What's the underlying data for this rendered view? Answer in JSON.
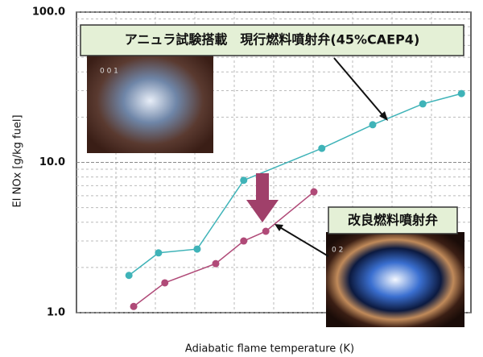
{
  "chart_data": {
    "type": "line",
    "y_label": "EI NOx [g/kg fuel]",
    "x_label": "Adiabatic flame temperature (K)",
    "log_y": true,
    "ylim": [
      1,
      100
    ],
    "yticks": [
      {
        "value": 1,
        "label": "1.0"
      },
      {
        "value": 10,
        "label": "10.0"
      },
      {
        "value": 100,
        "label": "100.0"
      }
    ],
    "xlim": [
      0,
      100
    ],
    "grid": true,
    "series": [
      {
        "name": "アニュラ試験搭載　現行燃料噴射弁(45%CAEP4)",
        "color": "#3fb3b8",
        "x": [
          13.3,
          20.8,
          30.6,
          42.4,
          62.2,
          75.1,
          87.8,
          97.6
        ],
        "values": [
          1.77,
          2.5,
          2.65,
          7.6,
          12.4,
          17.8,
          24.5,
          28.7
        ]
      },
      {
        "name": "改良燃料噴射弁",
        "color": "#b04a78",
        "x": [
          14.5,
          22.4,
          35.3,
          42.4,
          48.0,
          60.2
        ],
        "values": [
          1.1,
          1.58,
          2.12,
          3.0,
          3.48,
          6.37
        ]
      }
    ]
  },
  "photo_labels": [
    "0 0 1",
    "0 2"
  ]
}
